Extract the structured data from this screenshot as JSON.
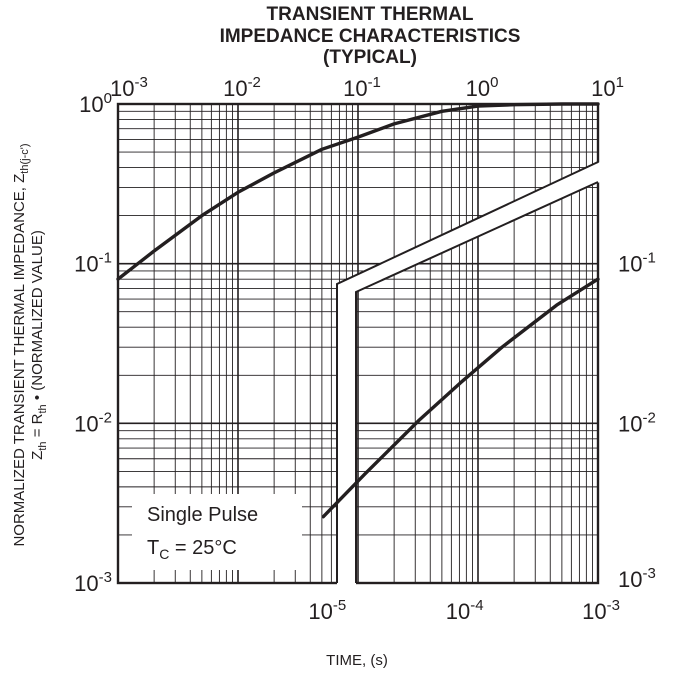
{
  "chart_data": {
    "type": "line",
    "title_lines": [
      "TRANSIENT THERMAL",
      "IMPEDANCE CHARACTERISTICS",
      "(TYPICAL)"
    ],
    "xlabel": "TIME, (s)",
    "ylabel": {
      "line1_text": "NORMALIZED TRANSIENT THERMAL IMPEDANCE, Z",
      "line1_sub": "th(j-c')",
      "line2_z": "Z",
      "line2_z_sub": "th",
      "line2_eq": " = R",
      "line2_r_sub": "th",
      "line2_rest": " • (NORMALIZED VALUE)"
    },
    "log_scale": true,
    "grid": true,
    "ylim": [
      0.001,
      1
    ],
    "y_ticks": [
      {
        "base": "10",
        "exp": "0"
      },
      {
        "base": "10",
        "exp": "-1"
      },
      {
        "base": "10",
        "exp": "-2"
      },
      {
        "base": "10",
        "exp": "-3"
      }
    ],
    "x_top_ticks": [
      {
        "base": "10",
        "exp": "-3"
      },
      {
        "base": "10",
        "exp": "-2"
      },
      {
        "base": "10",
        "exp": "-1"
      },
      {
        "base": "10",
        "exp": "0"
      },
      {
        "base": "10",
        "exp": "1"
      }
    ],
    "x_bottom_ticks": [
      {
        "base": "10",
        "exp": "-5"
      },
      {
        "base": "10",
        "exp": "-4"
      },
      {
        "base": "10",
        "exp": "-3"
      }
    ],
    "y_right_ticks": [
      {
        "base": "10",
        "exp": "-1"
      },
      {
        "base": "10",
        "exp": "-2"
      },
      {
        "base": "10",
        "exp": "-3"
      }
    ],
    "series": [
      {
        "axis": "top-x",
        "xlim": [
          0.001,
          10
        ],
        "x": [
          0.001,
          0.002,
          0.005,
          0.01,
          0.02,
          0.05,
          0.1,
          0.2,
          0.5,
          1,
          2,
          5,
          10
        ],
        "y": [
          0.08,
          0.12,
          0.2,
          0.28,
          0.37,
          0.52,
          0.62,
          0.75,
          0.9,
          0.97,
          0.99,
          1.0,
          1.0
        ]
      },
      {
        "axis": "bottom-x",
        "xlim": [
          3.2e-07,
          0.001
        ],
        "x": [
          1e-05,
          2e-05,
          5e-05,
          0.0001,
          0.0002,
          0.0005,
          0.001
        ],
        "y": [
          0.0026,
          0.0048,
          0.0105,
          0.018,
          0.03,
          0.055,
          0.08
        ]
      }
    ],
    "annotation": {
      "line1": "Single Pulse",
      "line2_T": "T",
      "line2_sub": "C",
      "line2_rest": " = 25°C"
    },
    "break_symbol": true
  }
}
